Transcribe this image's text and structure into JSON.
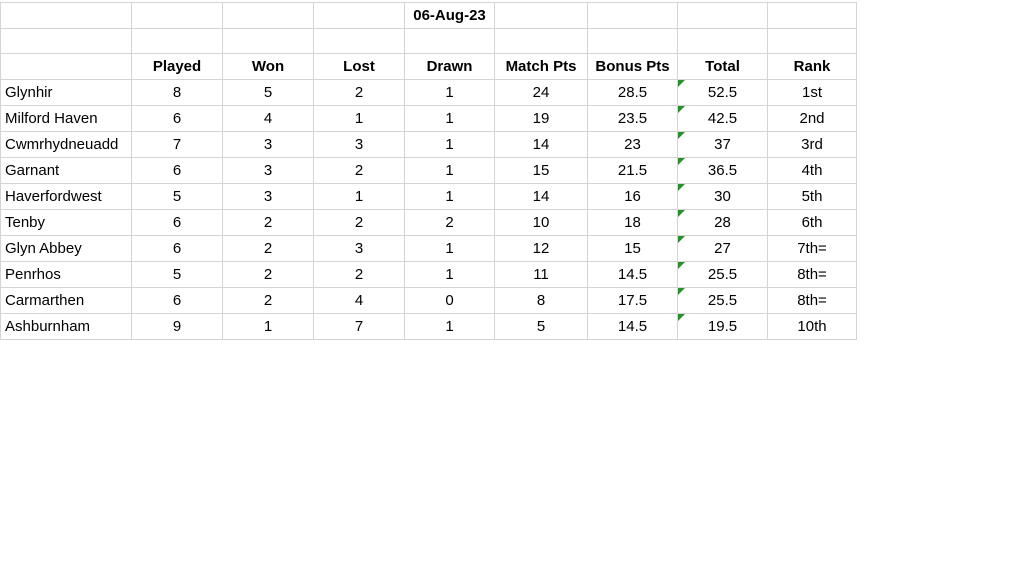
{
  "sheet": {
    "date": "06-Aug-23",
    "columns": [
      "Played",
      "Won",
      "Lost",
      "Drawn",
      "Match Pts",
      "Bonus Pts",
      "Total",
      "Rank"
    ],
    "teams": [
      {
        "name": "Glynhir",
        "played": "8",
        "won": "5",
        "lost": "2",
        "drawn": "1",
        "match_pts": "24",
        "bonus_pts": "28.5",
        "total": "52.5",
        "rank": "1st"
      },
      {
        "name": "Milford Haven",
        "played": "6",
        "won": "4",
        "lost": "1",
        "drawn": "1",
        "match_pts": "19",
        "bonus_pts": "23.5",
        "total": "42.5",
        "rank": "2nd"
      },
      {
        "name": "Cwmrhydneuadd",
        "played": "7",
        "won": "3",
        "lost": "3",
        "drawn": "1",
        "match_pts": "14",
        "bonus_pts": "23",
        "total": "37",
        "rank": "3rd"
      },
      {
        "name": "Garnant",
        "played": "6",
        "won": "3",
        "lost": "2",
        "drawn": "1",
        "match_pts": "15",
        "bonus_pts": "21.5",
        "total": "36.5",
        "rank": "4th"
      },
      {
        "name": "Haverfordwest",
        "played": "5",
        "won": "3",
        "lost": "1",
        "drawn": "1",
        "match_pts": "14",
        "bonus_pts": "16",
        "total": "30",
        "rank": "5th"
      },
      {
        "name": "Tenby",
        "played": "6",
        "won": "2",
        "lost": "2",
        "drawn": "2",
        "match_pts": "10",
        "bonus_pts": "18",
        "total": "28",
        "rank": "6th"
      },
      {
        "name": "Glyn Abbey",
        "played": "6",
        "won": "2",
        "lost": "3",
        "drawn": "1",
        "match_pts": "12",
        "bonus_pts": "15",
        "total": "27",
        "rank": "7th="
      },
      {
        "name": "Penrhos",
        "played": "5",
        "won": "2",
        "lost": "2",
        "drawn": "1",
        "match_pts": "11",
        "bonus_pts": "14.5",
        "total": "25.5",
        "rank": "8th="
      },
      {
        "name": "Carmarthen",
        "played": "6",
        "won": "2",
        "lost": "4",
        "drawn": "0",
        "match_pts": "8",
        "bonus_pts": "17.5",
        "total": "25.5",
        "rank": "8th="
      },
      {
        "name": "Ashburnham",
        "played": "9",
        "won": "1",
        "lost": "7",
        "drawn": "1",
        "match_pts": "5",
        "bonus_pts": "14.5",
        "total": "19.5",
        "rank": "10th"
      }
    ]
  },
  "colors": {
    "grid": "#d4d4d4",
    "error_indicator": "#279327",
    "text": "#000000",
    "background": "#ffffff"
  }
}
